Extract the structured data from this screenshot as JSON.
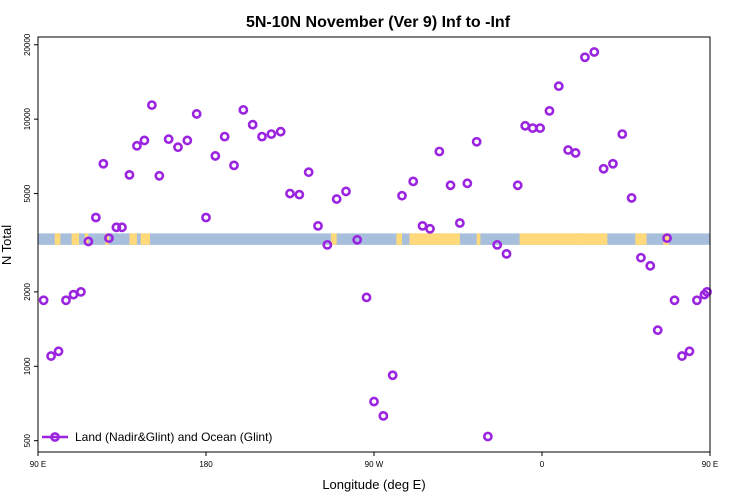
{
  "chart_data": {
    "type": "scatter",
    "title": "5N-10N November (Ver 9)   Inf to -Inf",
    "xlabel": "Longitude (deg E)",
    "ylabel": "N Total",
    "y_scale": "log",
    "xlim": [
      90,
      450
    ],
    "ylim": [
      450,
      21500
    ],
    "x_ticks": [
      {
        "value": 90,
        "label": "90 E"
      },
      {
        "value": 180,
        "label": "180"
      },
      {
        "value": 270,
        "label": "90 W"
      },
      {
        "value": 360,
        "label": "0"
      },
      {
        "value": 450,
        "label": "90 E"
      }
    ],
    "y_ticks": [
      {
        "value": 500,
        "label": "500"
      },
      {
        "value": 1000,
        "label": "1000"
      },
      {
        "value": 2000,
        "label": "2000"
      },
      {
        "value": 5000,
        "label": "5000"
      },
      {
        "value": 10000,
        "label": "10000"
      },
      {
        "value": 20000,
        "label": "20000"
      }
    ],
    "grid": false,
    "legend_position": "bottom-left",
    "land_ocean_band": {
      "y_range": [
        3100,
        3450
      ],
      "ocean_color": "#a7bfdc",
      "land_color": "#ffd97a",
      "land_segments": [
        [
          99,
          102
        ],
        [
          108,
          112
        ],
        [
          115,
          117
        ],
        [
          126,
          128
        ],
        [
          139,
          143
        ],
        [
          145,
          150
        ],
        [
          247,
          250
        ],
        [
          282,
          285
        ],
        [
          289,
          316
        ],
        [
          325,
          327
        ],
        [
          348,
          390
        ],
        [
          379,
          382
        ],
        [
          390,
          395
        ],
        [
          410,
          416
        ],
        [
          425,
          428
        ]
      ]
    },
    "series": [
      {
        "name": "Land (Nadir&Glint) and Ocean (Glint)",
        "color": "#9b24e0",
        "x": [
          93,
          97,
          101,
          105,
          109,
          113,
          117,
          121,
          125,
          128,
          132,
          135,
          139,
          143,
          147,
          151,
          155,
          160,
          165,
          170,
          175,
          180,
          185,
          190,
          195,
          200,
          205,
          210,
          215,
          220,
          225,
          230,
          235,
          240,
          245,
          250,
          255,
          261,
          266,
          270,
          275,
          280,
          285,
          291,
          296,
          300,
          305,
          311,
          316,
          320,
          325,
          331,
          336,
          341,
          347,
          351,
          355,
          359,
          364,
          369,
          374,
          378,
          383,
          388,
          393,
          398,
          403,
          408,
          413,
          418,
          422,
          427,
          431,
          435,
          439,
          443,
          447,
          451
        ],
        "y": [
          1850,
          1100,
          1150,
          1850,
          1950,
          2000,
          3200,
          4000,
          6600,
          3300,
          3650,
          3650,
          5950,
          7800,
          8200,
          11400,
          5900,
          8300,
          7700,
          8200,
          10500,
          4000,
          7100,
          8500,
          6500,
          10900,
          9500,
          8500,
          8700,
          8900,
          5000,
          4950,
          6100,
          3700,
          3100,
          4750,
          5100,
          3250,
          1900,
          720,
          630,
          920,
          4900,
          5600,
          3700,
          3600,
          7400,
          5400,
          3800,
          5500,
          8100,
          520,
          3100,
          2850,
          5400,
          9400,
          9200,
          9200,
          10800,
          13600,
          7500,
          7300,
          17800,
          18700,
          6300,
          6600,
          8700,
          4800,
          2750,
          2550,
          1400,
          3300,
          1850,
          1100,
          1150,
          1850,
          1950,
          2000
        ]
      }
    ]
  }
}
